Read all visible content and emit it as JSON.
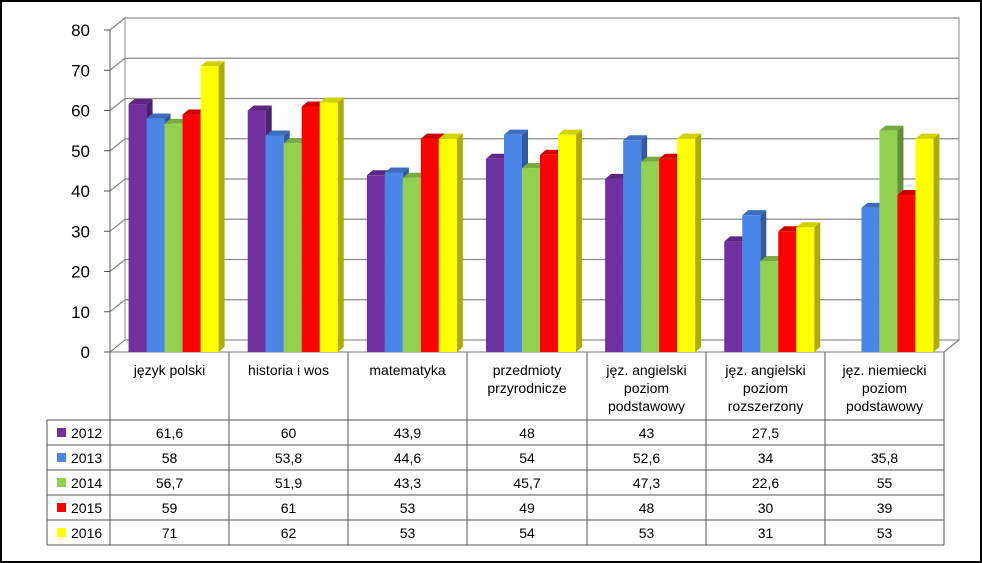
{
  "chart_data": {
    "type": "bar",
    "categories": [
      [
        "język polski"
      ],
      [
        "historia i wos"
      ],
      [
        "matematyka"
      ],
      [
        "przedmioty",
        "przyrodnicze"
      ],
      [
        "jęz. angielski",
        "poziom",
        "podstawowy"
      ],
      [
        "jęz. angielski",
        "poziom",
        "rozszerzony"
      ],
      [
        "jęz. niemiecki",
        "poziom",
        "podstawowy"
      ]
    ],
    "series": [
      {
        "name": "2012",
        "color": "#7030A0",
        "values": [
          61.6,
          60,
          43.9,
          48,
          43,
          27.5,
          null
        ],
        "labels": [
          "61,6",
          "60",
          "43,9",
          "48",
          "43",
          "27,5",
          ""
        ]
      },
      {
        "name": "2013",
        "color": "#4A86E8",
        "values": [
          58,
          53.8,
          44.6,
          54,
          52.6,
          34,
          35.8
        ],
        "labels": [
          "58",
          "53,8",
          "44,6",
          "54",
          "52,6",
          "34",
          "35,8"
        ]
      },
      {
        "name": "2014",
        "color": "#92D050",
        "values": [
          56.7,
          51.9,
          43.3,
          45.7,
          47.3,
          22.6,
          55
        ],
        "labels": [
          "56,7",
          "51,9",
          "43,3",
          "45,7",
          "47,3",
          "22,6",
          "55"
        ]
      },
      {
        "name": "2015",
        "color": "#FF0000",
        "values": [
          59,
          61,
          53,
          49,
          48,
          30,
          39
        ],
        "labels": [
          "59",
          "61",
          "53",
          "49",
          "48",
          "30",
          "39"
        ]
      },
      {
        "name": "2016",
        "color": "#FFFF00",
        "values": [
          71,
          62,
          53,
          54,
          53,
          31,
          53
        ],
        "labels": [
          "71",
          "62",
          "53",
          "54",
          "53",
          "31",
          "53"
        ]
      }
    ],
    "y_ticks": [
      "0",
      "10",
      "20",
      "30",
      "40",
      "50",
      "60",
      "70",
      "80"
    ],
    "ylim": [
      0,
      80
    ],
    "grid": true,
    "legend": "data-table"
  }
}
